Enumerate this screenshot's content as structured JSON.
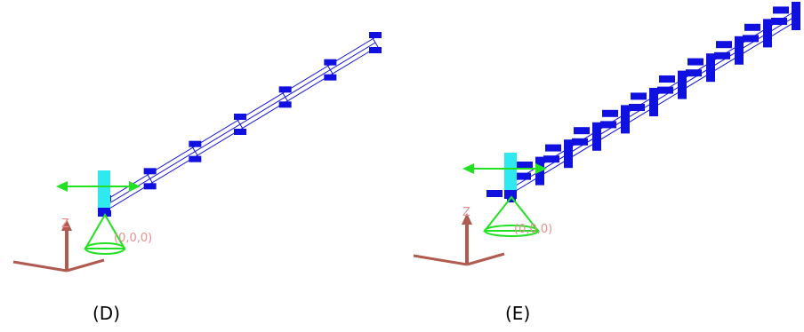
{
  "panels": [
    {
      "label": "(D)",
      "axis_label": "Z",
      "origin_label": "(0,0,0)"
    },
    {
      "label": "(E)",
      "axis_label": "Z",
      "origin_label": "(0,0,0)"
    }
  ]
}
